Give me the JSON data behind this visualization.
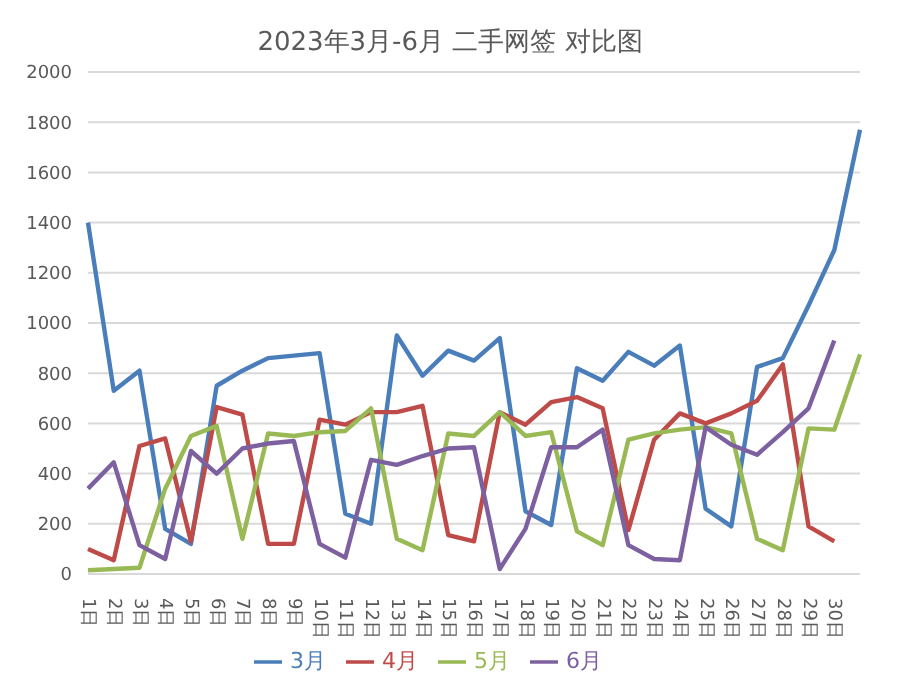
{
  "chart_data": {
    "type": "line",
    "title": "2023年3月-6月 二手网签 对比图",
    "categories": [
      "1日",
      "2日",
      "3日",
      "4日",
      "5日",
      "6日",
      "7日",
      "8日",
      "9日",
      "10日",
      "11日",
      "12日",
      "13日",
      "14日",
      "15日",
      "16日",
      "17日",
      "18日",
      "19日",
      "20日",
      "21日",
      "22日",
      "23日",
      "24日",
      "25日",
      "26日",
      "27日",
      "28日",
      "29日",
      "30日",
      null
    ],
    "series": [
      {
        "name": "3月",
        "color": "#4a7ebb",
        "values": [
          1400,
          730,
          810,
          180,
          120,
          750,
          810,
          860,
          870,
          880,
          240,
          200,
          950,
          790,
          890,
          850,
          940,
          250,
          195,
          820,
          770,
          885,
          830,
          910,
          260,
          190,
          825,
          860,
          1070,
          1290,
          1770
        ]
      },
      {
        "name": "4月",
        "color": "#be4b48",
        "values": [
          100,
          55,
          510,
          540,
          130,
          665,
          635,
          120,
          120,
          615,
          595,
          645,
          645,
          670,
          155,
          130,
          645,
          595,
          685,
          705,
          660,
          175,
          535,
          640,
          600,
          640,
          690,
          835,
          190,
          130,
          null
        ]
      },
      {
        "name": "5月",
        "color": "#98b954",
        "values": [
          15,
          20,
          25,
          340,
          550,
          590,
          140,
          560,
          550,
          565,
          570,
          660,
          140,
          95,
          560,
          550,
          645,
          550,
          565,
          170,
          115,
          535,
          560,
          575,
          585,
          560,
          140,
          95,
          580,
          575,
          875
        ]
      },
      {
        "name": "6月",
        "color": "#7d60a0",
        "values": [
          340,
          445,
          115,
          60,
          490,
          400,
          500,
          520,
          530,
          120,
          65,
          455,
          435,
          470,
          500,
          505,
          20,
          180,
          505,
          505,
          575,
          115,
          60,
          55,
          585,
          515,
          475,
          565,
          660,
          930,
          null
        ]
      }
    ],
    "ylim": [
      0,
      2000
    ],
    "yticks": [
      0,
      200,
      400,
      600,
      800,
      1000,
      1200,
      1400,
      1600,
      1800,
      2000
    ],
    "grid": "y",
    "legend": "bottom",
    "marker": "none",
    "line_style": "solid"
  }
}
